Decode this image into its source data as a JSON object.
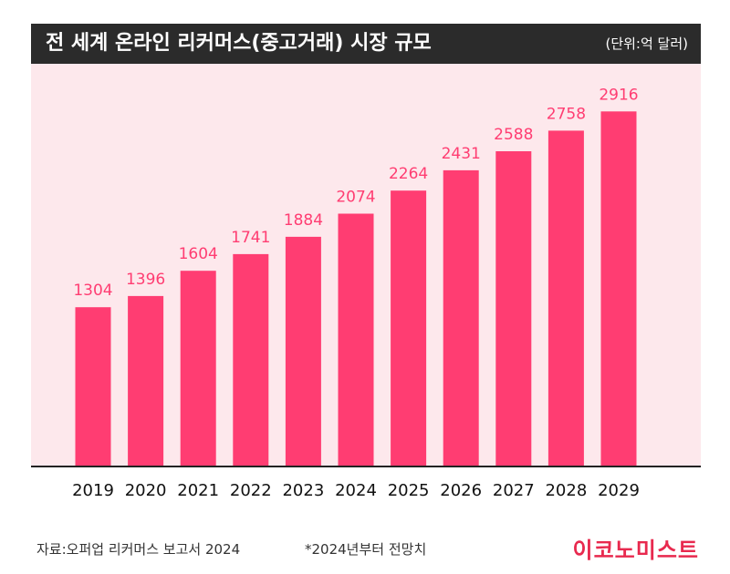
{
  "header": {
    "title": "전 세계 온라인 리커머스(중고거래) 시장 규모",
    "unit": "(단위:억 달러)"
  },
  "footer": {
    "source": "자료:오퍼업 리커머스 보고서 2024",
    "note": "*2024년부터 전망치",
    "logo": "이코노미스트"
  },
  "colors": {
    "bar": "#ff3d72",
    "plot_background": "#fde8ec",
    "value_label": "#ff3d72",
    "title_bar": "#2b2b2b"
  },
  "chart_data": {
    "type": "bar",
    "categories": [
      "2019",
      "2020",
      "2021",
      "2022",
      "2023",
      "2024",
      "2025",
      "2026",
      "2027",
      "2028",
      "2029"
    ],
    "values": [
      1304,
      1396,
      1604,
      1741,
      1884,
      2074,
      2264,
      2431,
      2588,
      2758,
      2916
    ],
    "title": "전 세계 온라인 리커머스(중고거래) 시장 규모",
    "unit": "(단위:억 달러)",
    "ylim": [
      0,
      3200
    ],
    "grid": false,
    "legend": "none"
  }
}
